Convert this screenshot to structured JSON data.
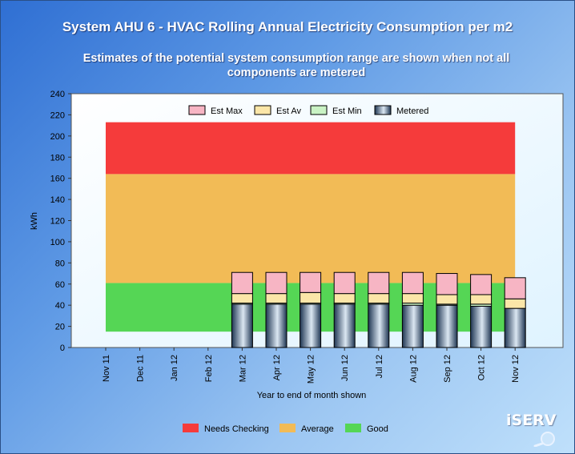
{
  "title": "System AHU 6 - HVAC Rolling Annual Electricity Consumption per m2",
  "subtitle": "Estimates of the potential system consumption range are shown when not all components are metered",
  "logo_text": "iSERV",
  "colors": {
    "needs_checking": "#f53b3b",
    "average": "#f2bb56",
    "good": "#55d655",
    "est_max": "#f7b5c4",
    "est_av": "#fbe6a8",
    "est_min": "#c9f2c4",
    "metered": "#2b4766"
  },
  "chart_data": {
    "type": "bar",
    "ylabel": "kWh",
    "xlabel": "Year to end of month shown",
    "ylim": [
      0,
      240
    ],
    "yticks": [
      0,
      20,
      40,
      60,
      80,
      100,
      120,
      140,
      160,
      180,
      200,
      220,
      240
    ],
    "categories": [
      "Nov 11",
      "Dec 11",
      "Jan 12",
      "Feb 12",
      "Mar 12",
      "Apr 12",
      "May 12",
      "Jun 12",
      "Jul 12",
      "Aug 12",
      "Sep 12",
      "Oct 12",
      "Nov 12"
    ],
    "bands": [
      {
        "name": "Good",
        "from": 15,
        "to": 61
      },
      {
        "name": "Average",
        "from": 61,
        "to": 164
      },
      {
        "name": "Needs Checking",
        "from": 164,
        "to": 213
      }
    ],
    "legend_top": [
      "Est Max",
      "Est Av",
      "Est Min",
      "Metered"
    ],
    "legend_bottom": [
      "Needs Checking",
      "Average",
      "Good"
    ],
    "series": [
      {
        "name": "Metered",
        "values": [
          null,
          null,
          null,
          null,
          41,
          41,
          41,
          41,
          41,
          40,
          40,
          39,
          37
        ]
      },
      {
        "name": "Est Min",
        "values": [
          null,
          null,
          null,
          null,
          42,
          42,
          42,
          42,
          42,
          42,
          41,
          41,
          37
        ]
      },
      {
        "name": "Est Av",
        "values": [
          null,
          null,
          null,
          null,
          51,
          51,
          52,
          51,
          51,
          51,
          50,
          50,
          46
        ]
      },
      {
        "name": "Est Max",
        "values": [
          null,
          null,
          null,
          null,
          71,
          71,
          71,
          71,
          71,
          71,
          70,
          69,
          66
        ]
      }
    ]
  }
}
